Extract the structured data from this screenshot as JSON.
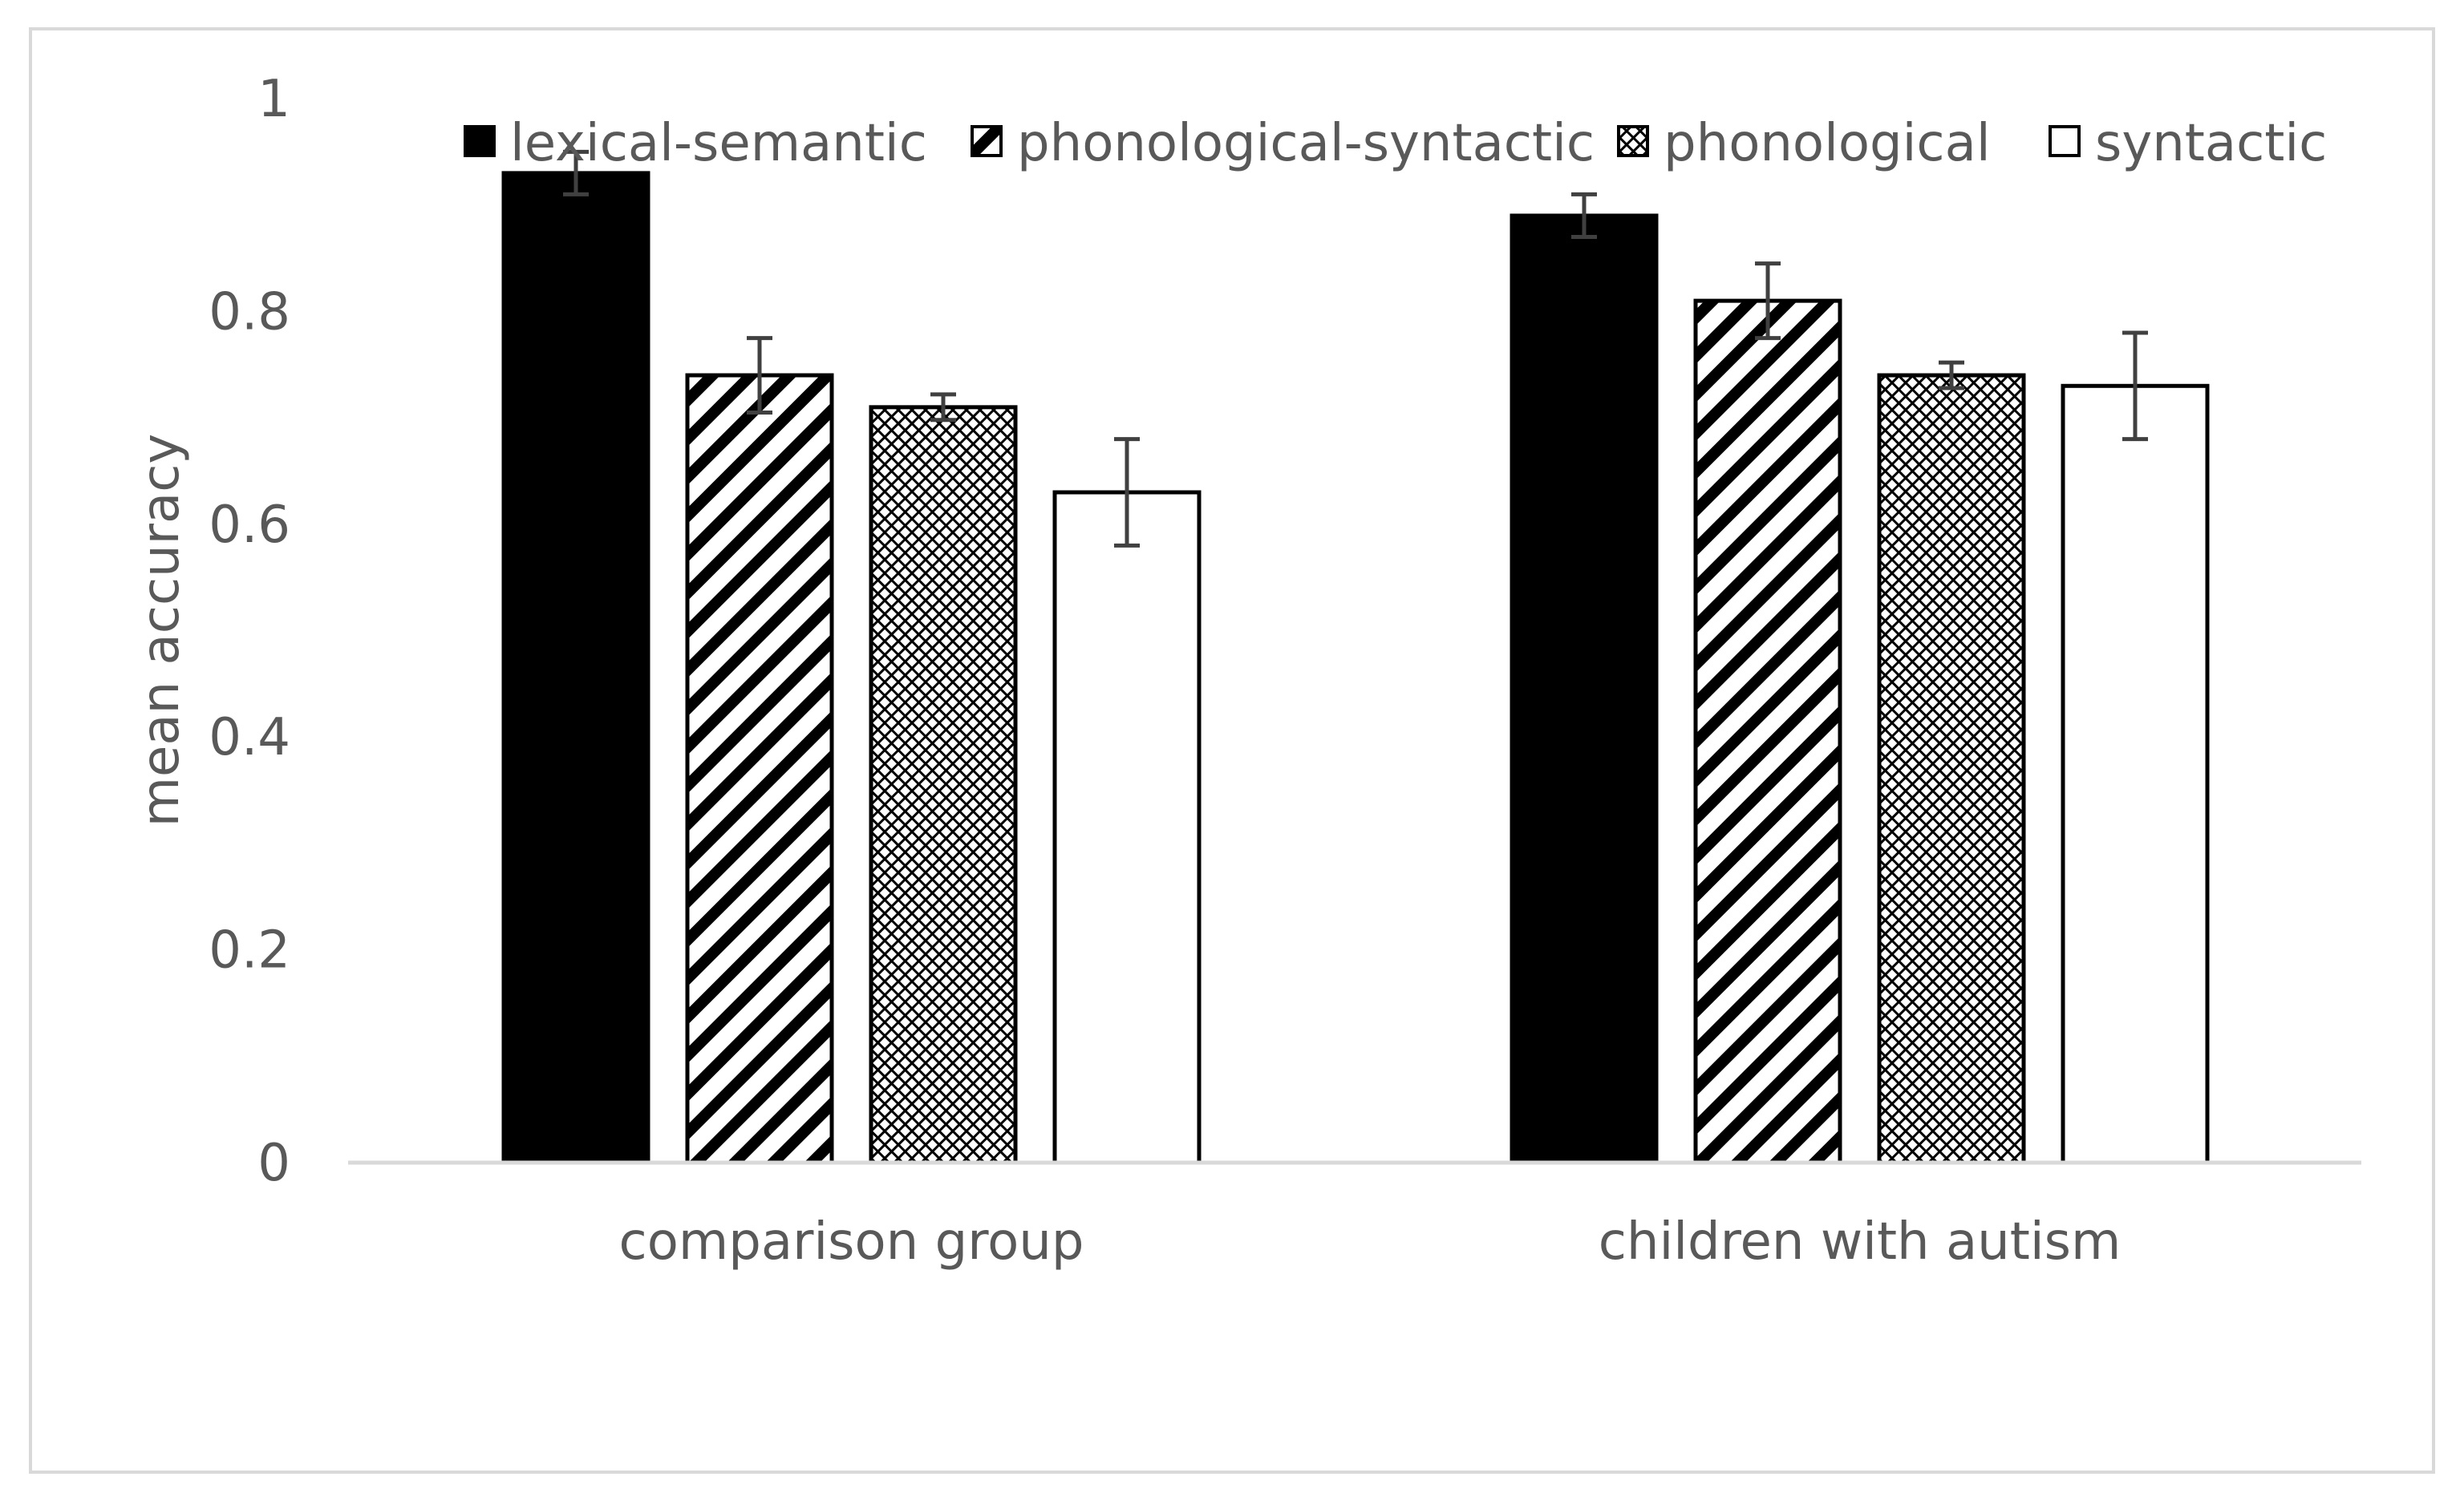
{
  "chart_data": {
    "type": "bar",
    "title": "",
    "xlabel": "",
    "ylabel": "mean accuracy",
    "ylim": [
      0,
      1
    ],
    "yticks": [
      "0",
      "0.2",
      "0.4",
      "0.6",
      "0.8",
      "1"
    ],
    "grid": false,
    "legend_position": "top",
    "categories": [
      "comparison group",
      "children with autism"
    ],
    "series": [
      {
        "name": "lexical-semantic",
        "pattern": "solid-black",
        "values": [
          0.93,
          0.89
        ],
        "errors": [
          0.02,
          0.02
        ]
      },
      {
        "name": "phonological-syntactic",
        "pattern": "diagonal-stripes",
        "values": [
          0.74,
          0.81
        ],
        "errors": [
          0.035,
          0.035
        ]
      },
      {
        "name": "phonological",
        "pattern": "crosshatch",
        "values": [
          0.71,
          0.74
        ],
        "errors": [
          0.012,
          0.012
        ]
      },
      {
        "name": "syntactic",
        "pattern": "white",
        "values": [
          0.63,
          0.73
        ],
        "errors": [
          0.05,
          0.05
        ]
      }
    ]
  },
  "colors": {
    "bar_fill": "#000000",
    "bar_outline": "#000000",
    "text": "#595959",
    "axis_line": "#d9d9d9",
    "frame": "#d9d9d9",
    "error_bar": "#404040"
  }
}
